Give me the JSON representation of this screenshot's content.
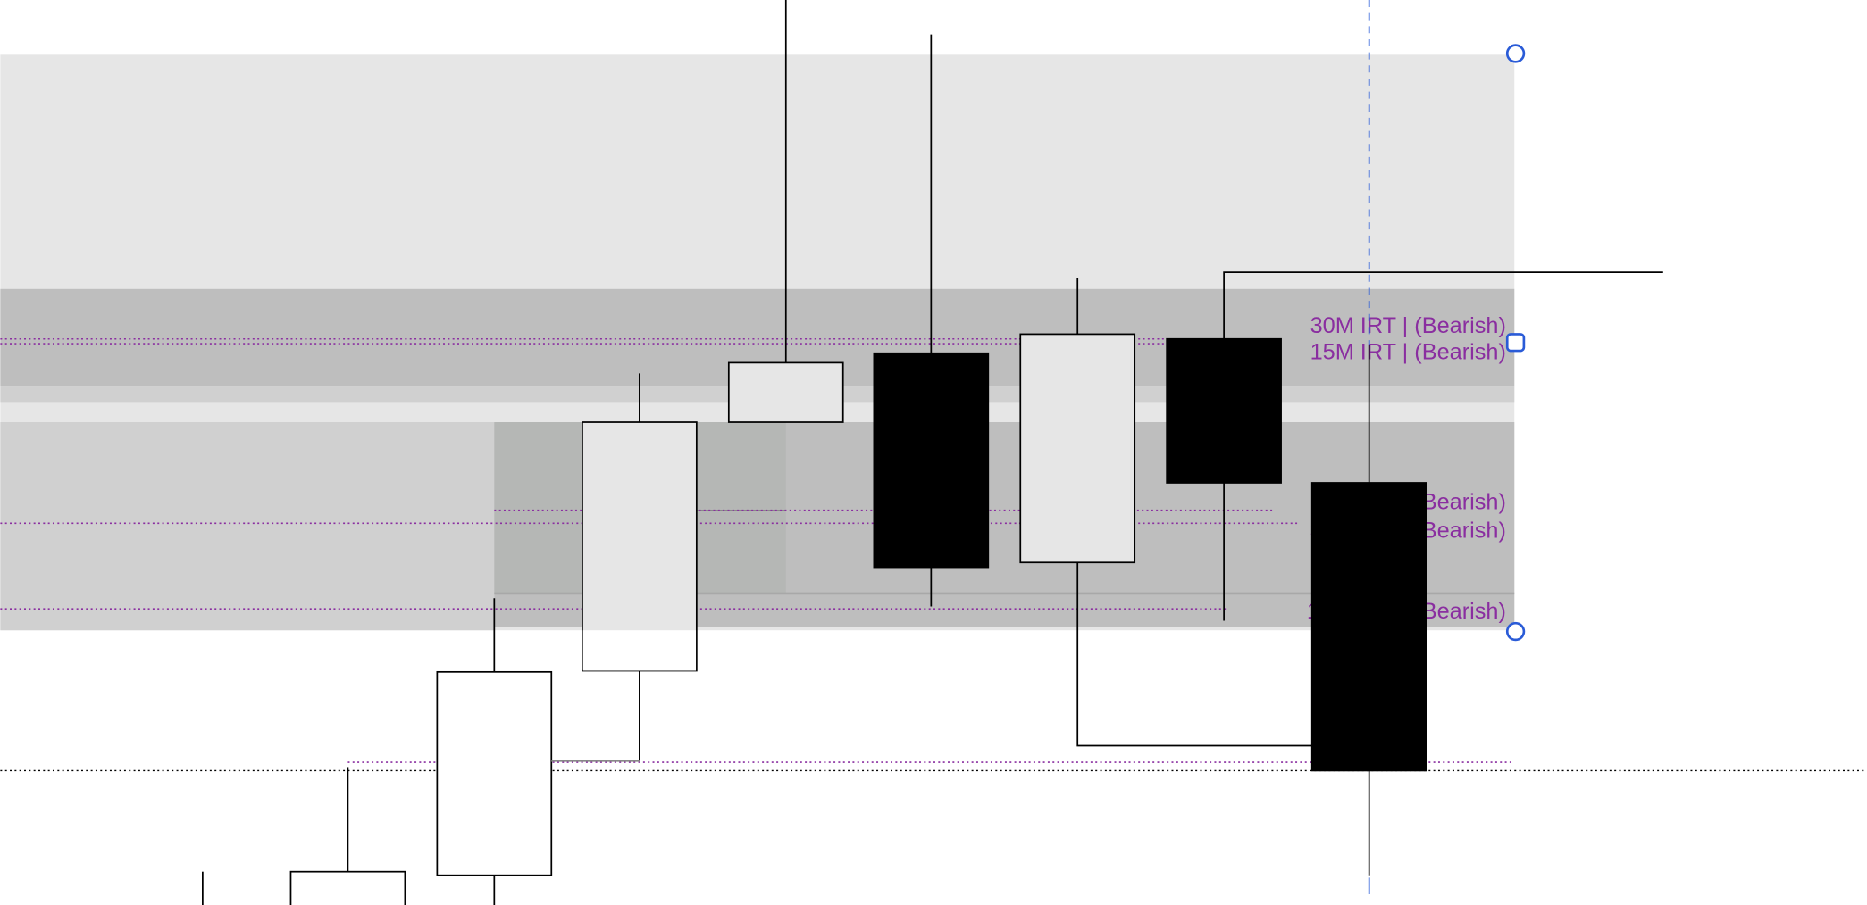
{
  "colors": {
    "label": "#8a2ea0",
    "handle": "#2a5bd7",
    "bull": "#ffffff",
    "bear": "#000000",
    "zone_light": "#e6e6e6",
    "zone_dark": "#bebebe"
  },
  "labels": [
    {
      "text": "30M IRT | (Bearish)"
    },
    {
      "text": "15M IRT | (Bearish)"
    },
    {
      "text": "15M IRT | (Bearish)"
    },
    {
      "text": "30M IRT | (Bearish)"
    },
    {
      "text": "1H WDR | (Bearish)"
    }
  ],
  "candles": [
    {
      "direction": "up"
    },
    {
      "direction": "up"
    },
    {
      "direction": "up"
    },
    {
      "direction": "up"
    },
    {
      "direction": "up"
    },
    {
      "direction": "down"
    },
    {
      "direction": "up"
    },
    {
      "direction": "down"
    },
    {
      "direction": "down"
    }
  ]
}
